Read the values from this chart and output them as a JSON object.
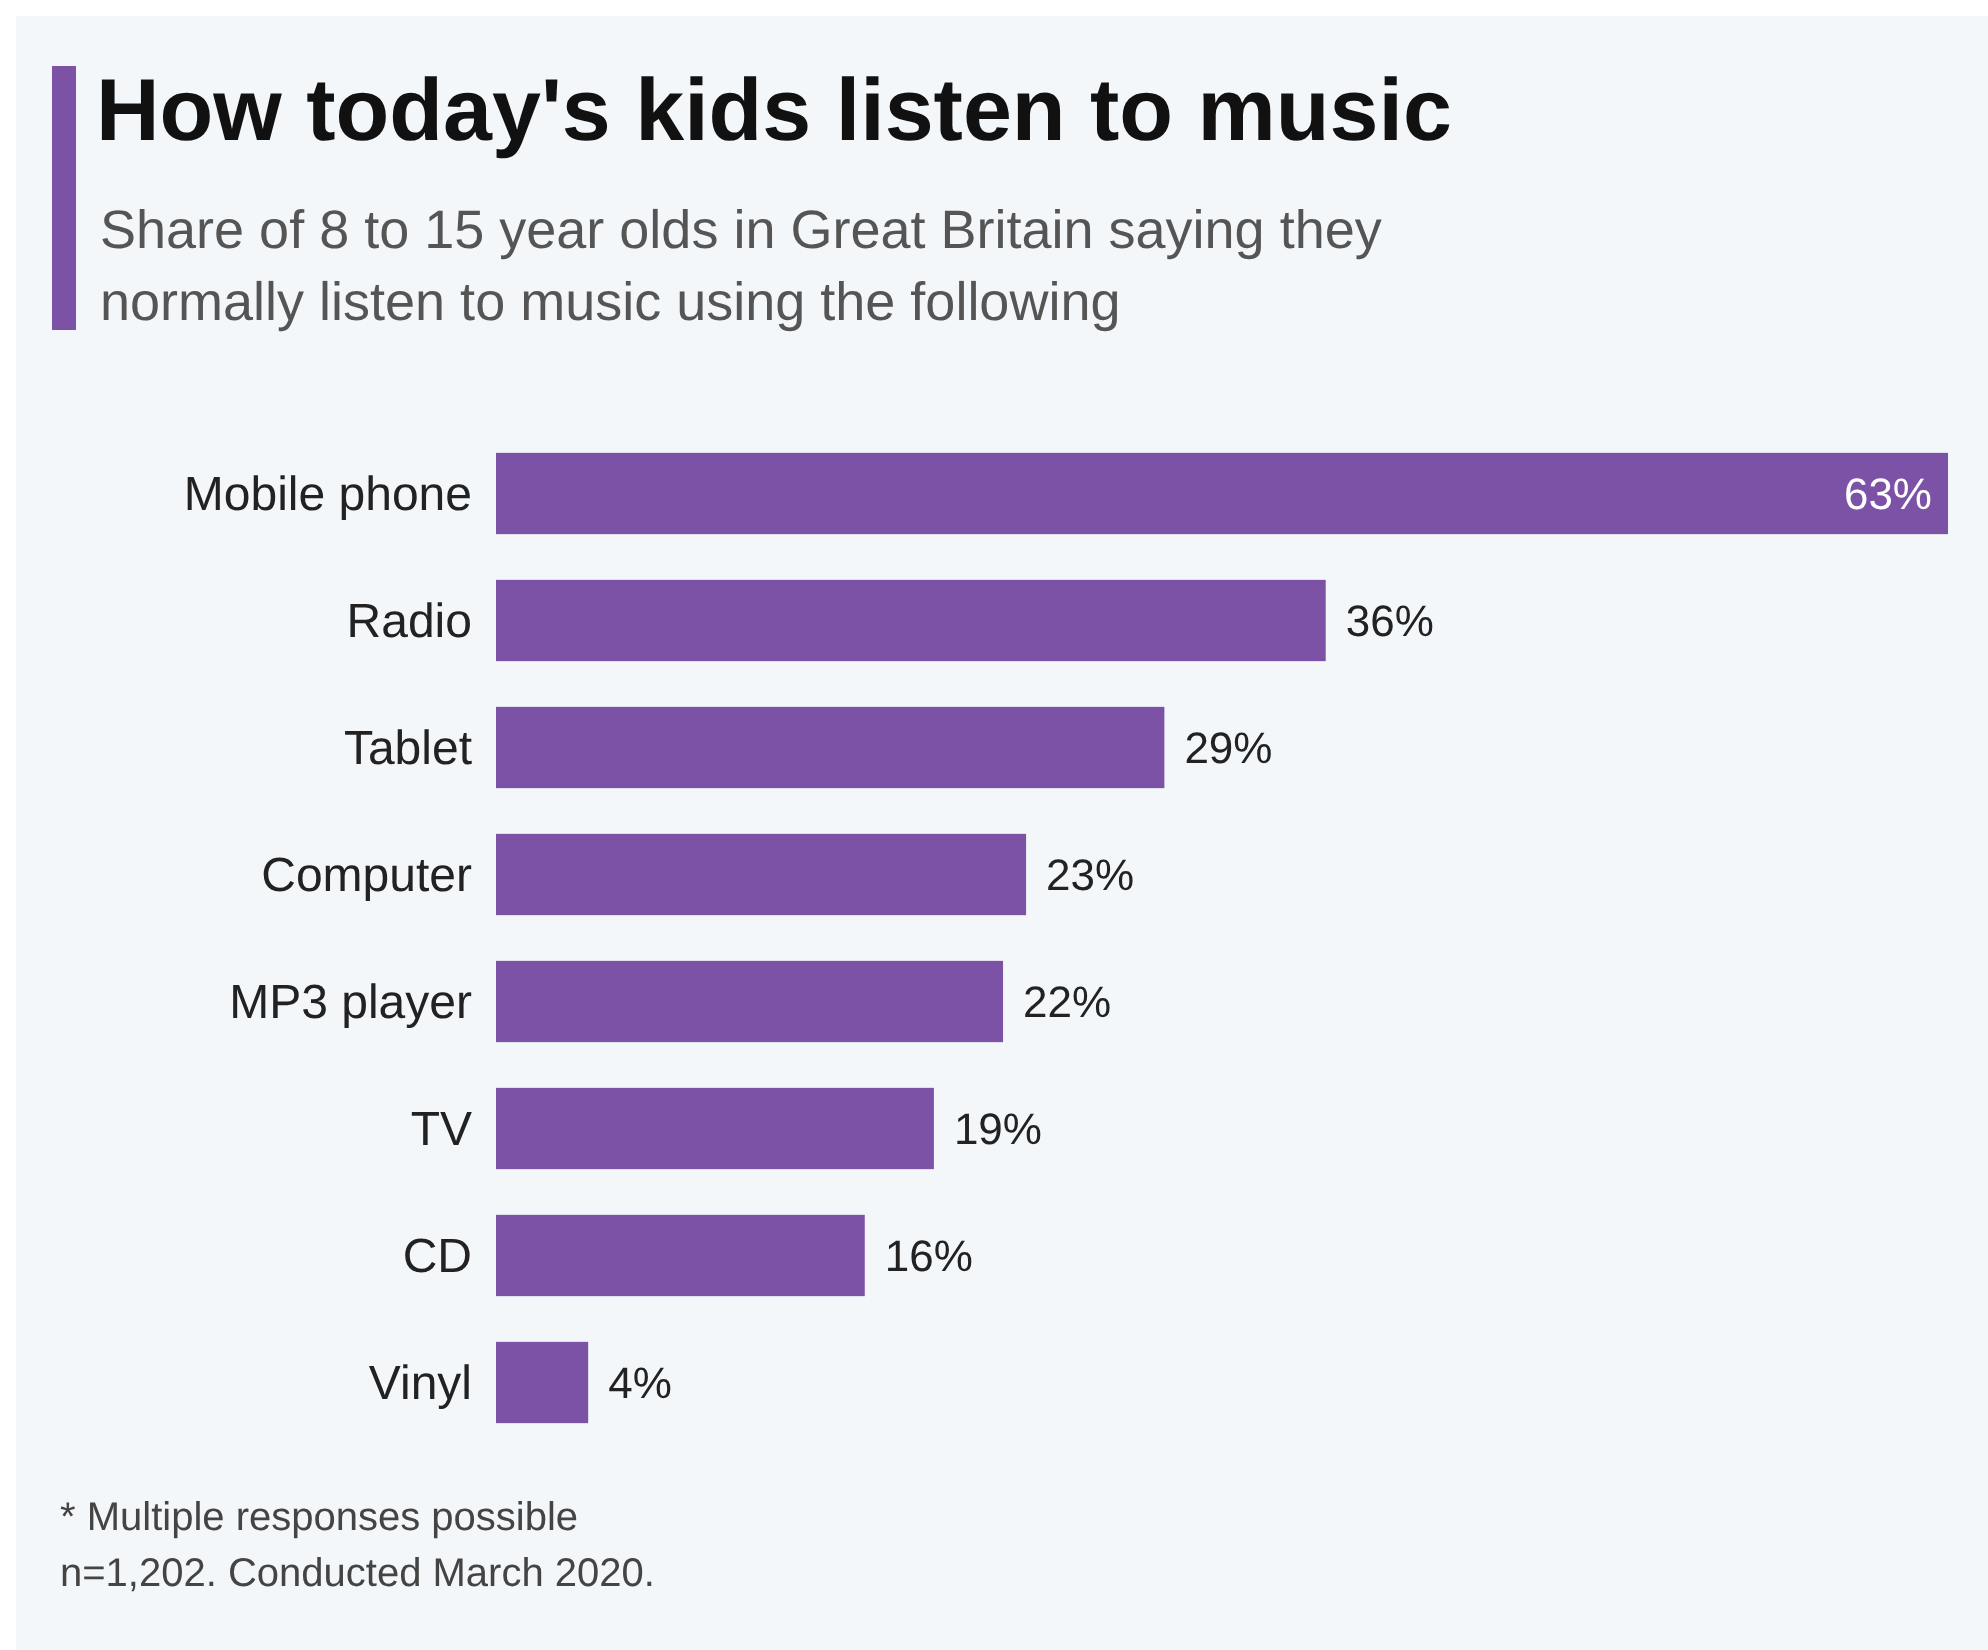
{
  "chart_data": {
    "type": "bar",
    "orientation": "horizontal",
    "title": "How today's kids listen to music",
    "subtitle": "Share of 8 to 15 year olds in Great Britain saying they normally listen to music using the following",
    "categories": [
      "Mobile phone",
      "Radio",
      "Tablet",
      "Computer",
      "MP3 player",
      "TV",
      "CD",
      "Vinyl"
    ],
    "values": [
      63,
      36,
      29,
      23,
      22,
      19,
      16,
      4
    ],
    "value_labels": [
      "63%",
      "36%",
      "29%",
      "23%",
      "22%",
      "19%",
      "16%",
      "4%"
    ],
    "color": "#7b52a6",
    "annotations": [
      "* Multiple responses possible",
      "n=1,202. Conducted March 2020."
    ]
  }
}
